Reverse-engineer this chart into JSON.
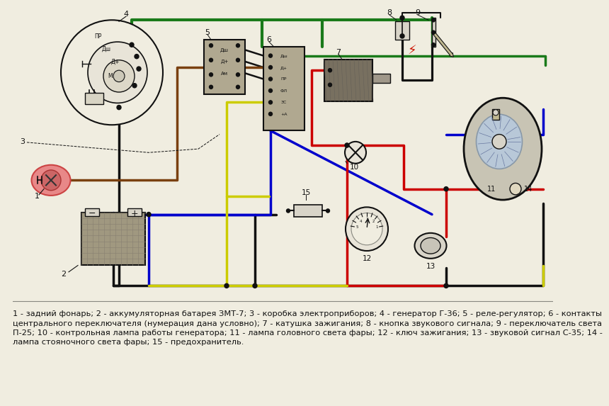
{
  "bg_color": "#f0ede0",
  "caption_text": "1 - задний фонарь; 2 - аккумуляторная батарея ЗМТ-7; 3 - коробка электроприборов; 4 - генератор Г-36; 5 - реле-регулятор; 6 - контакты\nцентрального переключателя (нумерация дана условно); 7 - катушка зажигания; 8 - кнопка звукового сигнала; 9 - переключатель света\nП-25; 10 - контрольная лампа работы генератора; 11 - лампа головного света фары; 12 - ключ зажигания; 13 - звуковой сигнал С-35; 14 -\nлампа стояночного света фары; 15 - предохранитель.",
  "wire_colors": {
    "black": "#111111",
    "green": "#1a7a1a",
    "blue": "#0000cc",
    "red": "#cc0000",
    "yellow": "#cccc00",
    "brown": "#7a4010",
    "gray": "#888880"
  }
}
